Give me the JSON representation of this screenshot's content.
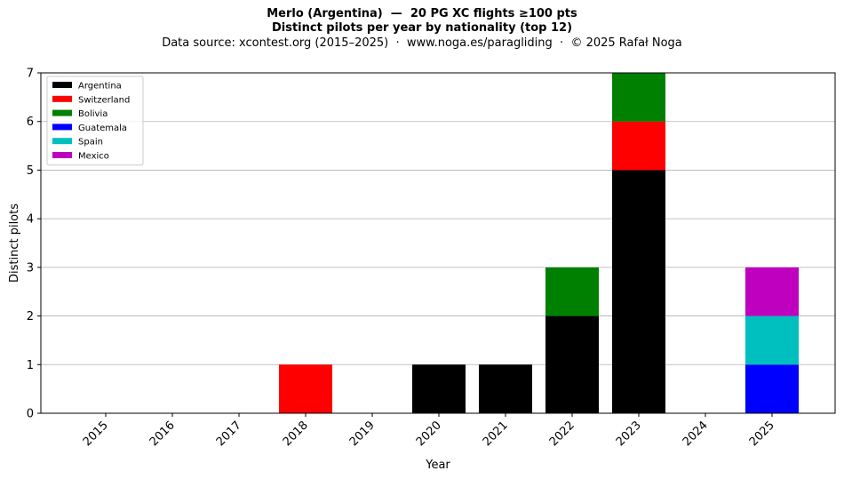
{
  "chart_data": {
    "type": "bar",
    "stacked": true,
    "title": "Merlo (Argentina)  —  20 PG XC flights ≥100 pts",
    "title_line2": "Distinct pilots per year by nationality (top 12)",
    "subtitle": "Data source: xcontest.org (2015–2025)  ·  www.noga.es/paragliding  ·  © 2025 Rafał Noga",
    "xlabel": "Year",
    "ylabel": "Distinct pilots",
    "ylim": [
      0,
      7
    ],
    "yticks": [
      "0",
      "1",
      "2",
      "3",
      "4",
      "5",
      "6",
      "7"
    ],
    "categories": [
      "2015",
      "2016",
      "2017",
      "2018",
      "2019",
      "2020",
      "2021",
      "2022",
      "2023",
      "2024",
      "2025"
    ],
    "series": [
      {
        "name": "Argentina",
        "color": "#000000",
        "values": [
          0,
          0,
          0,
          0,
          0,
          1,
          1,
          2,
          5,
          0,
          0
        ]
      },
      {
        "name": "Switzerland",
        "color": "#ff0000",
        "values": [
          0,
          0,
          0,
          1,
          0,
          0,
          0,
          0,
          1,
          0,
          0
        ]
      },
      {
        "name": "Bolivia",
        "color": "#008000",
        "values": [
          0,
          0,
          0,
          0,
          0,
          0,
          0,
          1,
          1,
          0,
          0
        ]
      },
      {
        "name": "Guatemala",
        "color": "#0000ff",
        "values": [
          0,
          0,
          0,
          0,
          0,
          0,
          0,
          0,
          0,
          0,
          1
        ]
      },
      {
        "name": "Spain",
        "color": "#00bfbf",
        "values": [
          0,
          0,
          0,
          0,
          0,
          0,
          0,
          0,
          0,
          0,
          1
        ]
      },
      {
        "name": "Mexico",
        "color": "#bf00bf",
        "values": [
          0,
          0,
          0,
          0,
          0,
          0,
          0,
          0,
          0,
          0,
          1
        ]
      }
    ],
    "grid": "horizontal",
    "legend_position": "top-left"
  }
}
